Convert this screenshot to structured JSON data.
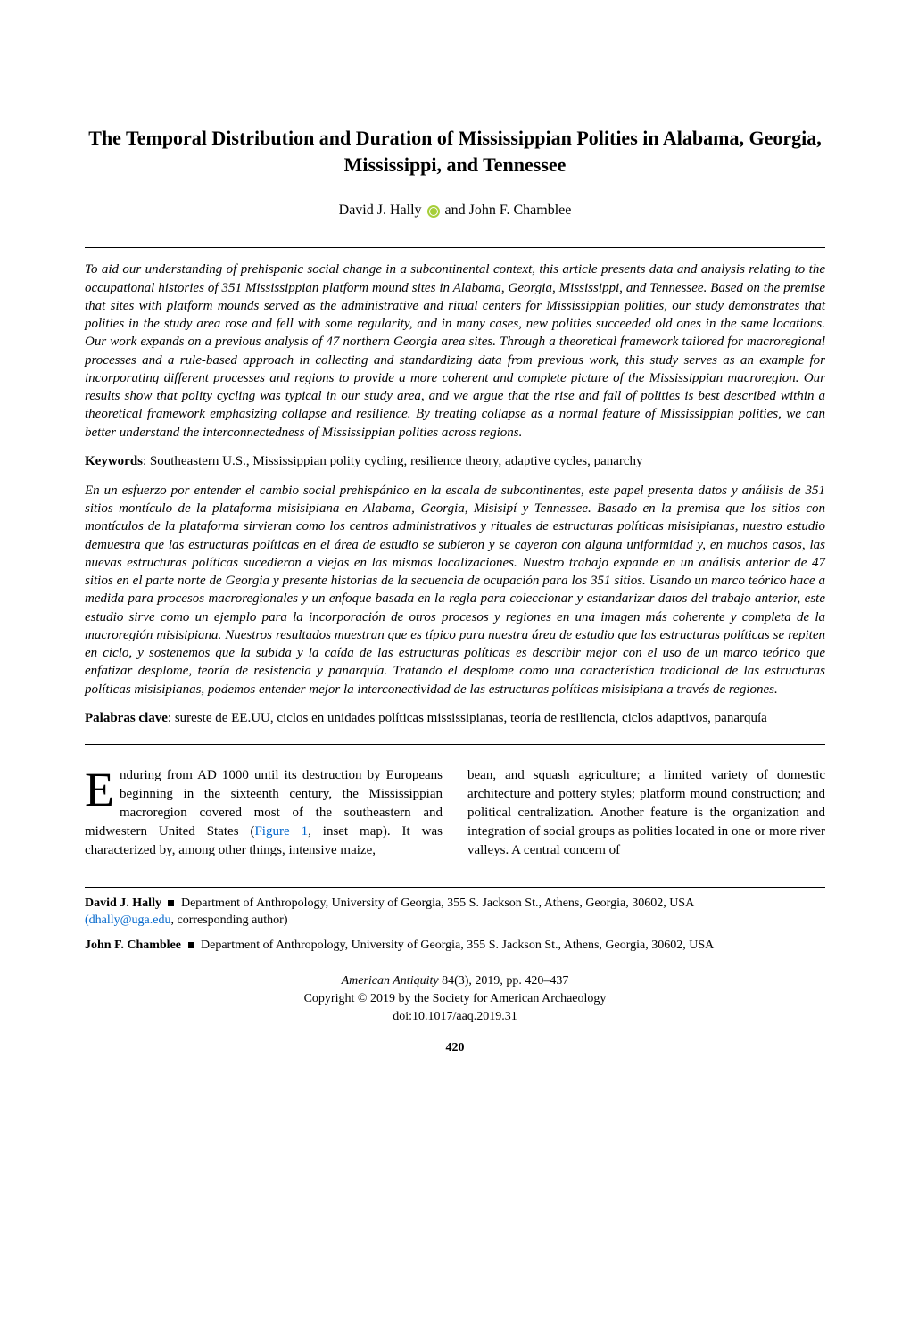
{
  "title": "The Temporal Distribution and Duration of Mississippian Polities in Alabama, Georgia, Mississippi, and Tennessee",
  "authors": {
    "author1": "David J. Hally",
    "connector": " and ",
    "author2": "John F. Chamblee"
  },
  "abstract_en": "To aid our understanding of prehispanic social change in a subcontinental context, this article presents data and analysis relating to the occupational histories of 351 Mississippian platform mound sites in Alabama, Georgia, Mississippi, and Tennessee. Based on the premise that sites with platform mounds served as the administrative and ritual centers for Mississippian polities, our study demonstrates that polities in the study area rose and fell with some regularity, and in many cases, new polities succeeded old ones in the same locations. Our work expands on a previous analysis of 47 northern Georgia area sites. Through a theoretical framework tailored for macroregional processes and a rule-based approach in collecting and standardizing data from previous work, this study serves as an example for incorporating different processes and regions to provide a more coherent and complete picture of the Mississippian macroregion. Our results show that polity cycling was typical in our study area, and we argue that the rise and fall of polities is best described within a theoretical framework emphasizing collapse and resilience. By treating collapse as a normal feature of Mississippian polities, we can better understand the interconnectedness of Mississippian polities across regions.",
  "keywords": {
    "label": "Keywords",
    "content": ": Southeastern U.S., Mississippian polity cycling, resilience theory, adaptive cycles, panarchy"
  },
  "abstract_es": "En un esfuerzo por entender el cambio social prehispánico en la escala de subcontinentes, este papel presenta datos y análisis de 351 sitios montículo de la plataforma misisipiana en Alabama, Georgia, Misisipí y Tennessee. Basado en la premisa que los sitios con montículos de la plataforma sirvieran como los centros administrativos y rituales de estructuras políticas misisipianas, nuestro estudio demuestra que las estructuras políticas en el área de estudio se subieron y se cayeron con alguna uniformidad y, en muchos casos, las nuevas estructuras políticas sucedieron a viejas en las mismas localizaciones. Nuestro trabajo expande en un análisis anterior de 47 sitios en el parte norte de Georgia y presente historias de la secuencia de ocupación para los 351 sitios. Usando un marco teórico hace a medida para procesos macroregionales y un enfoque basada en la regla para coleccionar y estandarizar datos del trabajo anterior, este estudio sirve como un ejemplo para la incorporación de otros procesos y regiones en una imagen más coherente y completa de la macroregión misisipiana. Nuestros resultados muestran que es típico para nuestra área de estudio que las estructuras políticas se repiten en ciclo, y sostenemos que la subida y la caída de las estructuras políticas es describir mejor con el uso de un marco teórico que enfatizar desplome, teoría de resistencia y panarquía. Tratando el desplome como una característica tradicional de las estructuras políticas misisipianas, podemos entender mejor la interconectividad de las estructuras políticas misisipiana a través de regiones.",
  "palabras": {
    "label": "Palabras clave",
    "content": ": sureste de EE.UU, ciclos en unidades políticas mississipianas, teoría de resiliencia, ciclos adaptivos, panarquía"
  },
  "body": {
    "dropcap": "E",
    "col1_part1": "nduring from AD 1000 until its destruction by Europeans beginning in the sixteenth century, the Mississippian macroregion covered most of the southeastern and midwestern United States (",
    "figure_link": "Figure 1",
    "col1_part2": ", inset map). It was characterized by, among other things, intensive maize,",
    "col2": "bean, and squash agriculture; a limited variety of domestic architecture and pottery styles; platform mound construction; and political centralization. Another feature is the organization and integration of social groups as polities located in one or more river valleys. A central concern of"
  },
  "affiliations": {
    "a1_name": "David J. Hally",
    "a1_text": " Department of Anthropology, University of Georgia, 355 S. Jackson St., Athens, Georgia, 30602, USA ",
    "a1_email": "(dhally@uga.edu",
    "a1_suffix": ", corresponding author)",
    "a2_name": "John F. Chamblee",
    "a2_text": " Department of Anthropology, University of Georgia, 355 S. Jackson St., Athens, Georgia, 30602, USA"
  },
  "footer": {
    "journal": "American Antiquity",
    "issue": " 84(3), 2019, pp. 420–437",
    "copyright": "Copyright © 2019 by the Society for American Archaeology",
    "doi": "doi:10.1017/aaq.2019.31"
  },
  "page_number": "420"
}
